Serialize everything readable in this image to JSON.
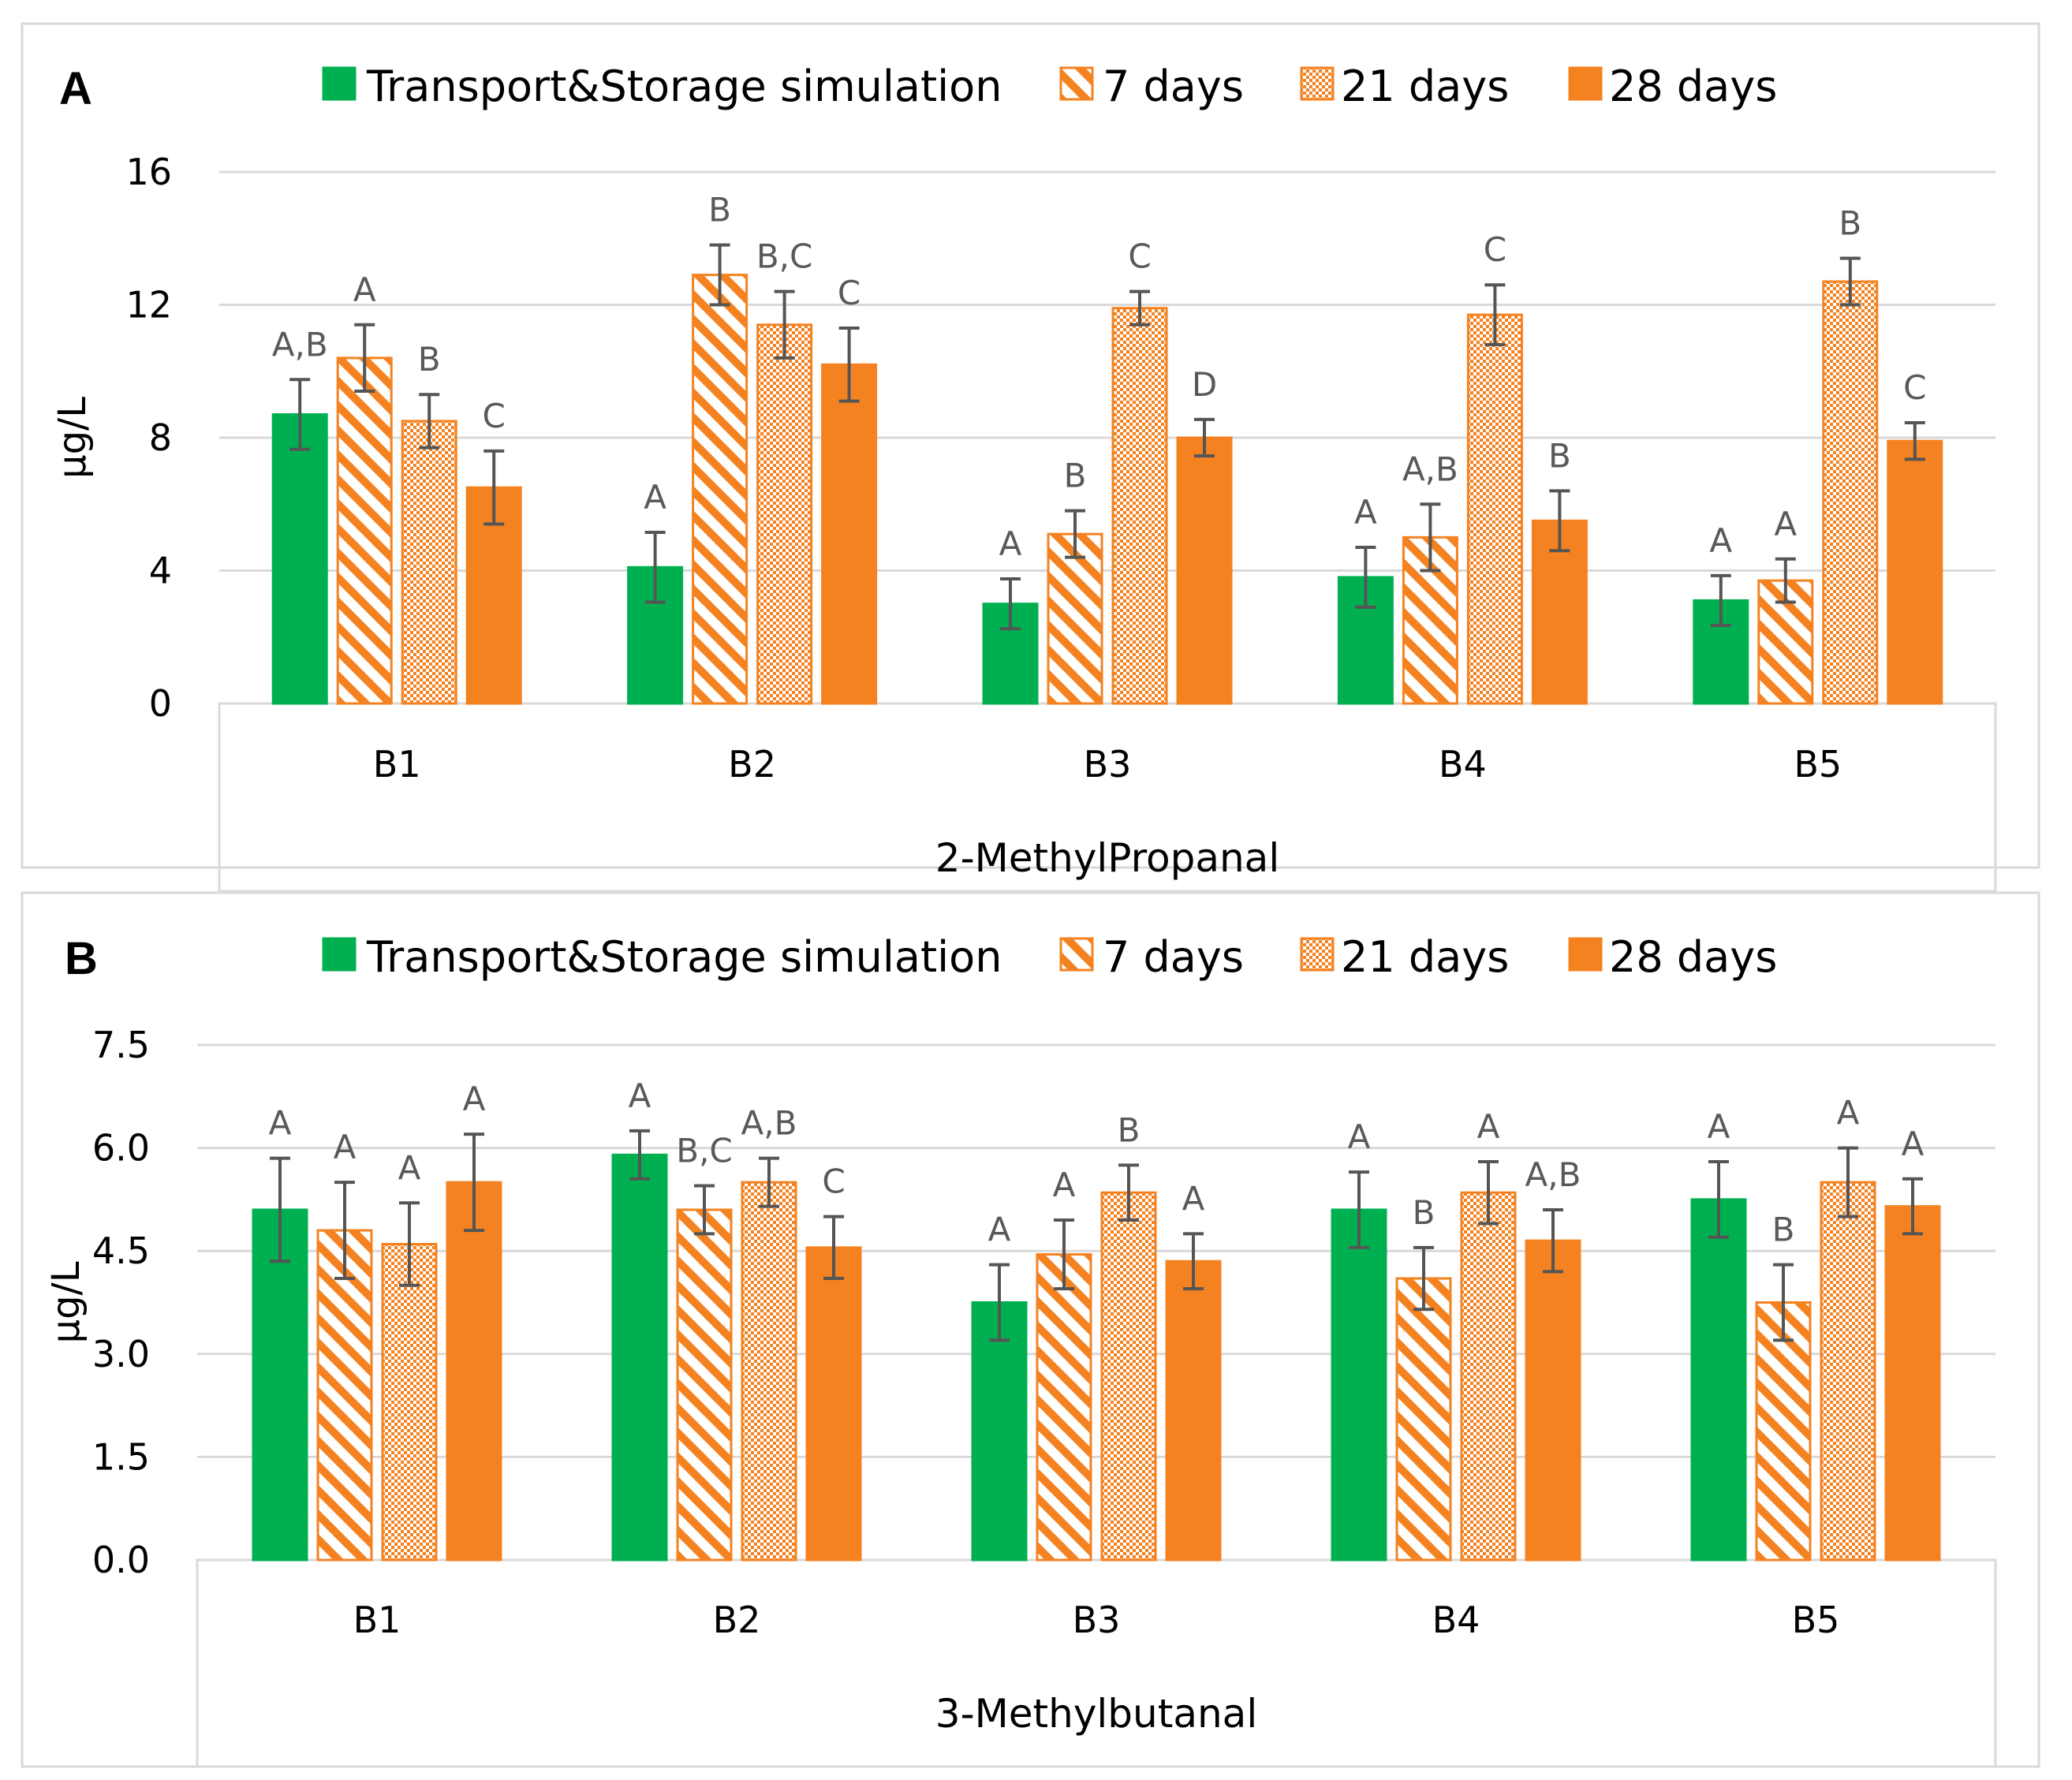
{
  "colors": {
    "green": "#00B050",
    "orange": "#F58220",
    "error": "#555555",
    "grid": "#D9D9D9",
    "frame": "#D9D9D9"
  },
  "chart_data": [
    {
      "type": "bar",
      "panel_label": "A",
      "title": "",
      "xlabel": "2-MethylPropanal",
      "ylabel": "µg/L",
      "ylim": [
        0,
        16
      ],
      "yticks": [
        "0",
        "4",
        "8",
        "12",
        "16"
      ],
      "ytick_values": [
        0,
        4,
        8,
        12,
        16
      ],
      "grid": true,
      "legend_position": "top",
      "categories": [
        "B1",
        "B2",
        "B3",
        "B4",
        "B5"
      ],
      "series": [
        {
          "name": "Transport&Storage simulation",
          "pattern": "solid-green",
          "values": [
            8.7,
            4.1,
            3.0,
            3.8,
            3.1
          ],
          "errors": [
            1.05,
            1.05,
            0.75,
            0.9,
            0.75
          ],
          "labels": [
            "A,B",
            "A",
            "A",
            "A",
            "A"
          ]
        },
        {
          "name": "7 days",
          "pattern": "diagonal",
          "values": [
            10.4,
            12.9,
            5.1,
            5.0,
            3.7
          ],
          "errors": [
            1.0,
            0.9,
            0.7,
            1.0,
            0.65
          ],
          "labels": [
            "A",
            "B",
            "B",
            "A,B",
            "A"
          ]
        },
        {
          "name": "21 days",
          "pattern": "checker",
          "values": [
            8.5,
            11.4,
            11.9,
            11.7,
            12.7
          ],
          "errors": [
            0.8,
            1.0,
            0.5,
            0.9,
            0.7
          ],
          "labels": [
            "B",
            "B,C",
            "C",
            "C",
            "B"
          ]
        },
        {
          "name": "28 days",
          "pattern": "solid-orange",
          "values": [
            6.5,
            10.2,
            8.0,
            5.5,
            7.9
          ],
          "errors": [
            1.1,
            1.1,
            0.55,
            0.9,
            0.55
          ],
          "labels": [
            "C",
            "C",
            "D",
            "B",
            "C"
          ]
        }
      ]
    },
    {
      "type": "bar",
      "panel_label": "B",
      "title": "",
      "xlabel": "3-Methylbutanal",
      "ylabel": "µg/L",
      "ylim": [
        0,
        7.5
      ],
      "yticks": [
        "0.0",
        "1.5",
        "3.0",
        "4.5",
        "6.0",
        "7.5"
      ],
      "ytick_values": [
        0,
        1.5,
        3.0,
        4.5,
        6.0,
        7.5
      ],
      "grid": true,
      "legend_position": "top",
      "categories": [
        "B1",
        "B2",
        "B3",
        "B4",
        "B5"
      ],
      "series": [
        {
          "name": "Transport&Storage simulation",
          "pattern": "solid-green",
          "values": [
            5.1,
            5.9,
            3.75,
            5.1,
            5.25
          ],
          "errors": [
            0.75,
            0.35,
            0.55,
            0.55,
            0.55
          ],
          "labels": [
            "A",
            "A",
            "A",
            "A",
            "A"
          ]
        },
        {
          "name": "7 days",
          "pattern": "diagonal",
          "values": [
            4.8,
            5.1,
            4.45,
            4.1,
            3.75
          ],
          "errors": [
            0.7,
            0.35,
            0.5,
            0.45,
            0.55
          ],
          "labels": [
            "A",
            "B,C",
            "A",
            "B",
            "B"
          ]
        },
        {
          "name": "21 days",
          "pattern": "checker",
          "values": [
            4.6,
            5.5,
            5.35,
            5.35,
            5.5
          ],
          "errors": [
            0.6,
            0.35,
            0.4,
            0.45,
            0.5
          ],
          "labels": [
            "A",
            "A,B",
            "B",
            "A",
            "A"
          ]
        },
        {
          "name": "28 days",
          "pattern": "solid-orange",
          "values": [
            5.5,
            4.55,
            4.35,
            4.65,
            5.15
          ],
          "errors": [
            0.7,
            0.45,
            0.4,
            0.45,
            0.4
          ],
          "labels": [
            "A",
            "C",
            "A",
            "A,B",
            "A"
          ]
        }
      ]
    }
  ]
}
